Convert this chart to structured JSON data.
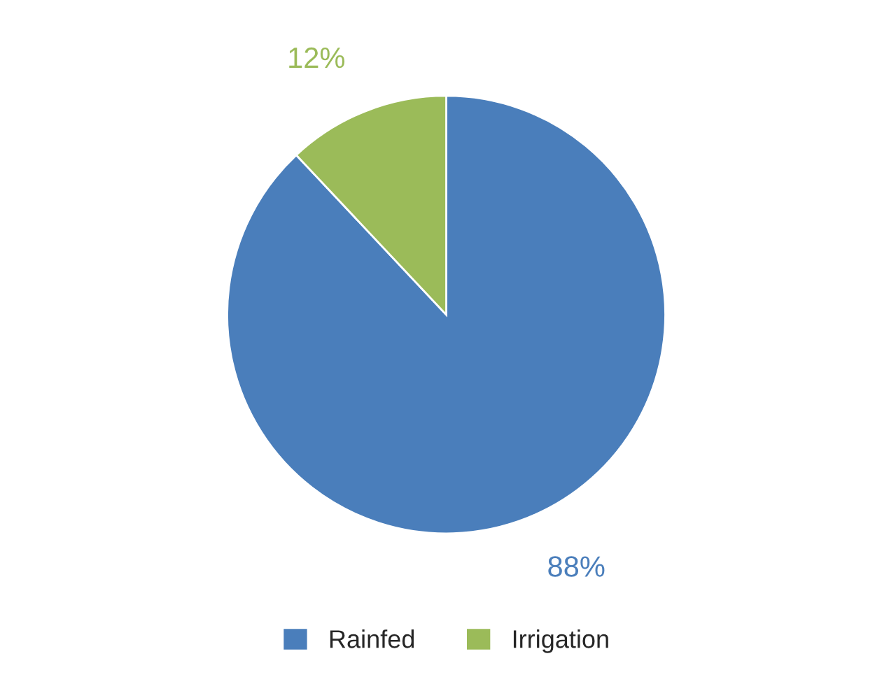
{
  "chart_data": {
    "type": "pie",
    "categories": [
      "Rainfed",
      "Irrigation"
    ],
    "values": [
      88,
      12
    ],
    "colors": [
      "#4a7ebb",
      "#9bbb59"
    ],
    "value_labels": [
      "88%",
      "12%"
    ],
    "legend": "bottom"
  }
}
